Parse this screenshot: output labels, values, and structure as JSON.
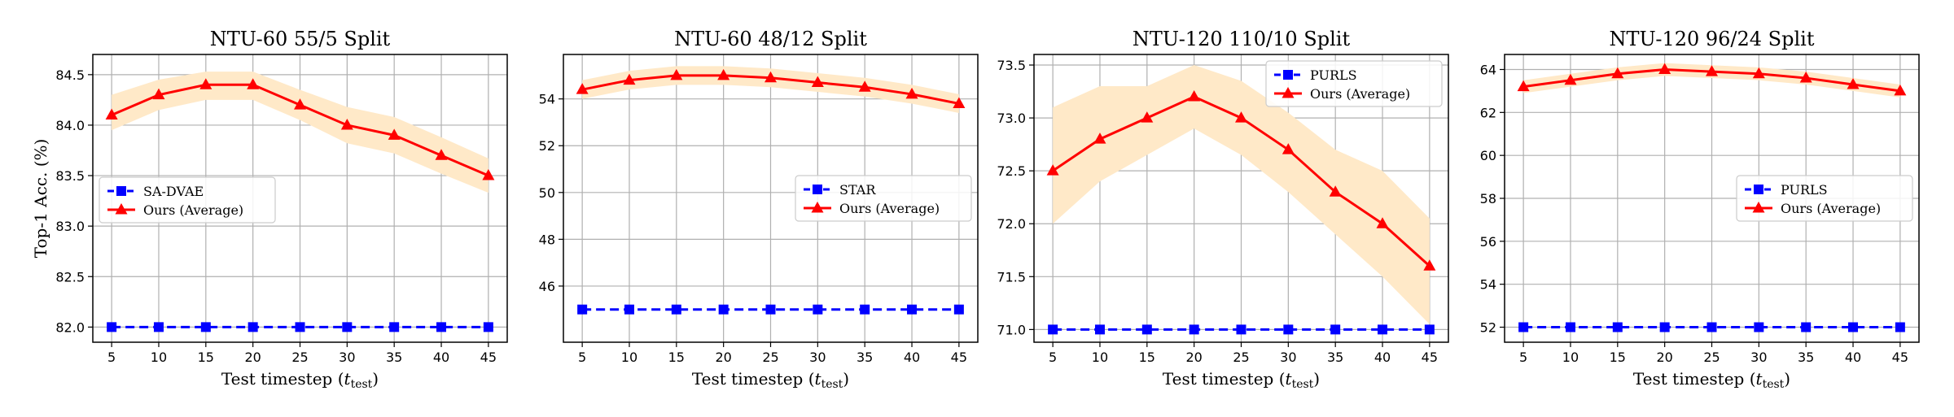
{
  "colors": {
    "baseline": "#0000ff",
    "ours": "#ff0000",
    "band": "#ffe9c8",
    "grid": "#b0b0b0"
  },
  "chart_data": [
    {
      "type": "line",
      "title": "NTU-60 55/5 Split",
      "xlabel_main": "Test timestep (",
      "xlabel_var": "t",
      "xlabel_sub": "test",
      "xlabel_close": ")",
      "ylabel": "Top-1 Acc. (%)",
      "x": [
        5,
        10,
        15,
        20,
        25,
        30,
        35,
        40,
        45
      ],
      "xlim": [
        3,
        47
      ],
      "ylim": [
        81.85,
        84.7
      ],
      "yticks": [
        82.0,
        82.5,
        83.0,
        83.5,
        84.0,
        84.5
      ],
      "ytick_labels": [
        "82.0",
        "82.5",
        "83.0",
        "83.5",
        "84.0",
        "84.5"
      ],
      "legend_position": "center-left",
      "series": [
        {
          "name": "SA-DVAE",
          "style": "dashed-square",
          "values": [
            82.0,
            82.0,
            82.0,
            82.0,
            82.0,
            82.0,
            82.0,
            82.0,
            82.0
          ]
        },
        {
          "name": "Ours (Average)",
          "style": "solid-triangle",
          "values": [
            84.1,
            84.3,
            84.4,
            84.4,
            84.2,
            84.0,
            83.9,
            83.7,
            83.5
          ],
          "band_lower": [
            83.95,
            84.15,
            84.25,
            84.25,
            84.05,
            83.82,
            83.72,
            83.52,
            83.33
          ],
          "band_upper": [
            84.3,
            84.45,
            84.53,
            84.53,
            84.35,
            84.18,
            84.08,
            83.88,
            83.67
          ]
        }
      ]
    },
    {
      "type": "line",
      "title": "NTU-60 48/12 Split",
      "xlabel_main": "Test timestep (",
      "xlabel_var": "t",
      "xlabel_sub": "test",
      "xlabel_close": ")",
      "ylabel": "",
      "x": [
        5,
        10,
        15,
        20,
        25,
        30,
        35,
        40,
        45
      ],
      "xlim": [
        3,
        47
      ],
      "ylim": [
        43.6,
        55.9
      ],
      "yticks": [
        46,
        48,
        50,
        52,
        54
      ],
      "ytick_labels": [
        "46",
        "48",
        "50",
        "52",
        "54"
      ],
      "legend_position": "center-right",
      "series": [
        {
          "name": "STAR",
          "style": "dashed-square",
          "values": [
            45.0,
            45.0,
            45.0,
            45.0,
            45.0,
            45.0,
            45.0,
            45.0,
            45.0
          ]
        },
        {
          "name": "Ours (Average)",
          "style": "solid-triangle",
          "values": [
            54.4,
            54.8,
            55.0,
            55.0,
            54.9,
            54.7,
            54.5,
            54.2,
            53.8
          ],
          "band_lower": [
            54.0,
            54.4,
            54.6,
            54.6,
            54.5,
            54.3,
            54.1,
            53.8,
            53.4
          ],
          "band_upper": [
            54.8,
            55.2,
            55.4,
            55.4,
            55.3,
            55.1,
            54.9,
            54.6,
            54.2
          ]
        }
      ]
    },
    {
      "type": "line",
      "title": "NTU-120 110/10 Split",
      "xlabel_main": "Test timestep (",
      "xlabel_var": "t",
      "xlabel_sub": "test",
      "xlabel_close": ")",
      "ylabel": "",
      "x": [
        5,
        10,
        15,
        20,
        25,
        30,
        35,
        40,
        45
      ],
      "xlim": [
        3,
        47
      ],
      "ylim": [
        70.88,
        73.6
      ],
      "yticks": [
        71.0,
        71.5,
        72.0,
        72.5,
        73.0,
        73.5
      ],
      "ytick_labels": [
        "71.0",
        "71.5",
        "72.0",
        "72.5",
        "73.0",
        "73.5"
      ],
      "legend_position": "top-right",
      "series": [
        {
          "name": "PURLS",
          "style": "dashed-square",
          "values": [
            71.0,
            71.0,
            71.0,
            71.0,
            71.0,
            71.0,
            71.0,
            71.0,
            71.0
          ]
        },
        {
          "name": "Ours (Average)",
          "style": "solid-triangle",
          "values": [
            72.5,
            72.8,
            73.0,
            73.2,
            73.0,
            72.7,
            72.3,
            72.0,
            71.6
          ],
          "band_lower": [
            72.0,
            72.4,
            72.65,
            72.9,
            72.65,
            72.3,
            71.9,
            71.5,
            71.05
          ],
          "band_upper": [
            73.1,
            73.3,
            73.3,
            73.5,
            73.35,
            73.05,
            72.7,
            72.5,
            72.05
          ]
        }
      ]
    },
    {
      "type": "line",
      "title": "NTU-120 96/24 Split",
      "xlabel_main": "Test timestep (",
      "xlabel_var": "t",
      "xlabel_sub": "test",
      "xlabel_close": ")",
      "ylabel": "",
      "x": [
        5,
        10,
        15,
        20,
        25,
        30,
        35,
        40,
        45
      ],
      "xlim": [
        3,
        47
      ],
      "ylim": [
        51.3,
        64.7
      ],
      "yticks": [
        52,
        54,
        56,
        58,
        60,
        62,
        64
      ],
      "ytick_labels": [
        "52",
        "54",
        "56",
        "58",
        "60",
        "62",
        "64"
      ],
      "legend_position": "center-right",
      "series": [
        {
          "name": "PURLS",
          "style": "dashed-square",
          "values": [
            52.0,
            52.0,
            52.0,
            52.0,
            52.0,
            52.0,
            52.0,
            52.0,
            52.0
          ]
        },
        {
          "name": "Ours (Average)",
          "style": "solid-triangle",
          "values": [
            63.2,
            63.5,
            63.8,
            64.0,
            63.9,
            63.8,
            63.6,
            63.3,
            63.0
          ],
          "band_lower": [
            62.9,
            63.2,
            63.5,
            63.7,
            63.6,
            63.5,
            63.3,
            63.0,
            62.7
          ],
          "band_upper": [
            63.5,
            63.8,
            64.1,
            64.3,
            64.2,
            64.1,
            63.9,
            63.6,
            63.3
          ]
        }
      ]
    }
  ]
}
